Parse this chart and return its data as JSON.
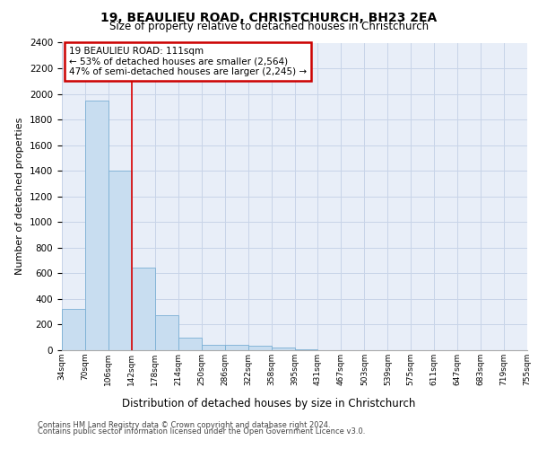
{
  "title1": "19, BEAULIEU ROAD, CHRISTCHURCH, BH23 2EA",
  "title2": "Size of property relative to detached houses in Christchurch",
  "xlabel": "Distribution of detached houses by size in Christchurch",
  "ylabel": "Number of detached properties",
  "bar_values": [
    320,
    1950,
    1400,
    645,
    270,
    100,
    45,
    40,
    35,
    20,
    5,
    3,
    2,
    1,
    1,
    1,
    0,
    0,
    0,
    0
  ],
  "bar_color": "#c8ddf0",
  "bar_edge_color": "#7aafd4",
  "x_labels": [
    "34sqm",
    "70sqm",
    "106sqm",
    "142sqm",
    "178sqm",
    "214sqm",
    "250sqm",
    "286sqm",
    "322sqm",
    "358sqm",
    "395sqm",
    "431sqm",
    "467sqm",
    "503sqm",
    "539sqm",
    "575sqm",
    "611sqm",
    "647sqm",
    "683sqm",
    "719sqm",
    "755sqm"
  ],
  "vline_x": 2,
  "vline_color": "#dd0000",
  "annotation_text": "19 BEAULIEU ROAD: 111sqm\n← 53% of detached houses are smaller (2,564)\n47% of semi-detached houses are larger (2,245) →",
  "annotation_box_facecolor": "#ffffff",
  "annotation_box_edgecolor": "#cc0000",
  "ylim": [
    0,
    2400
  ],
  "yticks": [
    0,
    200,
    400,
    600,
    800,
    1000,
    1200,
    1400,
    1600,
    1800,
    2000,
    2200,
    2400
  ],
  "grid_color": "#c8d4e8",
  "bg_color": "#e8eef8",
  "footer1": "Contains HM Land Registry data © Crown copyright and database right 2024.",
  "footer2": "Contains public sector information licensed under the Open Government Licence v3.0."
}
